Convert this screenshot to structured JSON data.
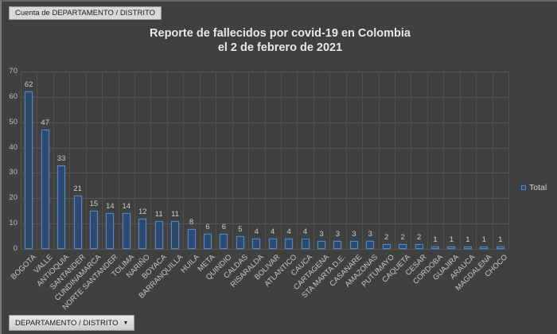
{
  "pivot_buttons": {
    "value_button_label": "Cuenta de DEPARTAMENTO / DISTRITO",
    "axis_button_label": "DEPARTAMENTO / DISTRITO",
    "axis_button_arrow": "▼"
  },
  "chart_data": {
    "type": "bar",
    "title": "Reporte de fallecidos por covid-19 en Colombia el 2 de febrero de 2021",
    "title_line1": "Reporte de fallecidos por covid-19 en Colombia",
    "title_line2": "el 2 de febrero de 2021",
    "categories": [
      "BOGOTA",
      "VALLE",
      "ANTIOQUIA",
      "SANTANDER",
      "CUNDINAMARCA",
      "NORTE SANTANDER",
      "TOLIMA",
      "NARIÑO",
      "BOYACA",
      "BARRANQUILLA",
      "HUILA",
      "META",
      "QUINDIO",
      "CALDAS",
      "RISARALDA",
      "BOLIVAR",
      "ATLANTICO",
      "CAUCA",
      "CARTAGENA",
      "STA MARTA D.E.",
      "CASANARE",
      "AMAZONAS",
      "PUTUMAYO",
      "CAQUETA",
      "CESAR",
      "CORDOBA",
      "GUAJIRA",
      "ARAUCA",
      "MAGDALENA",
      "CHOCO"
    ],
    "series": [
      {
        "name": "Total",
        "values": [
          62,
          47,
          33,
          21,
          15,
          14,
          14,
          12,
          11,
          11,
          8,
          6,
          6,
          5,
          4,
          4,
          4,
          4,
          3,
          3,
          3,
          3,
          2,
          2,
          2,
          1,
          1,
          1,
          1,
          1
        ]
      }
    ],
    "ylim": [
      0,
      70
    ],
    "yticks": [
      0,
      10,
      20,
      30,
      40,
      50,
      60,
      70
    ],
    "grid": true,
    "legend_position": "right",
    "data_labels": true,
    "xlabel": "",
    "ylabel": ""
  },
  "colors": {
    "background": "#404040",
    "bar_fill": "#2b4a6d",
    "bar_border": "#5088c5",
    "gridline": "#585650",
    "title_text": "#e8e8e8",
    "axis_text": "#bdbdbd",
    "data_label_text": "#cbcbcb",
    "button_bg": "#d9d9d9",
    "button_text": "#1c1c1c"
  }
}
